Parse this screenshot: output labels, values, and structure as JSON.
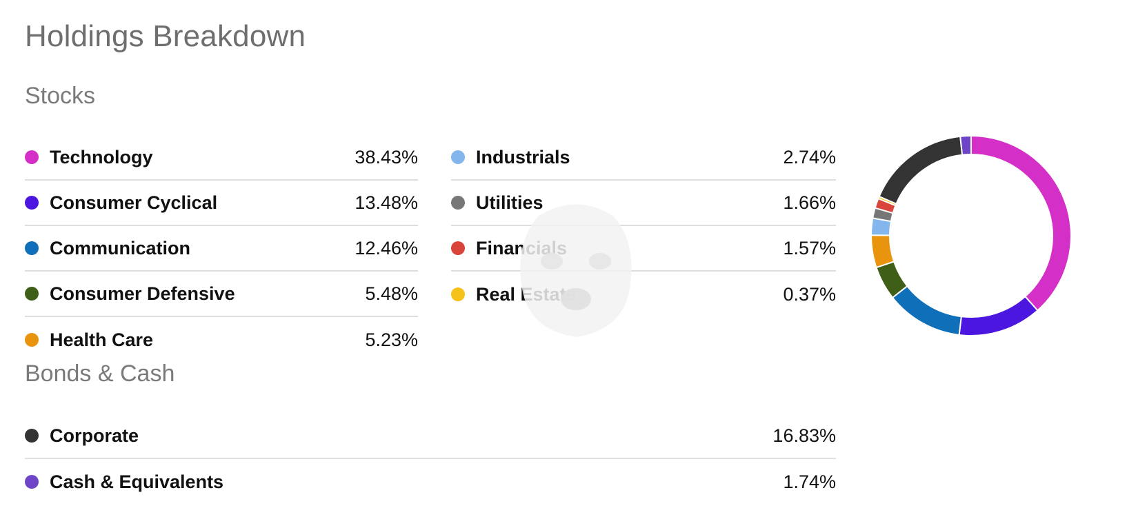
{
  "page": {
    "title": "Holdings Breakdown"
  },
  "sections": {
    "stocks": {
      "title": "Stocks"
    },
    "bonds": {
      "title": "Bonds & Cash"
    }
  },
  "stocks_left": [
    {
      "label": "Technology",
      "value": "38.43%",
      "color": "#d42fc7"
    },
    {
      "label": "Consumer Cyclical",
      "value": "13.48%",
      "color": "#4a16e0"
    },
    {
      "label": "Communication",
      "value": "12.46%",
      "color": "#0f6fb8"
    },
    {
      "label": "Consumer Defensive",
      "value": "5.48%",
      "color": "#3f5e17"
    },
    {
      "label": "Health Care",
      "value": "5.23%",
      "color": "#e8940f"
    }
  ],
  "stocks_right": [
    {
      "label": "Industrials",
      "value": "2.74%",
      "color": "#82b6ec"
    },
    {
      "label": "Utilities",
      "value": "1.66%",
      "color": "#777777"
    },
    {
      "label": "Financials",
      "value": "1.57%",
      "color": "#d9453a"
    },
    {
      "label": "Real Estate",
      "value": "0.37%",
      "color": "#f5c21b"
    }
  ],
  "bonds_cash": [
    {
      "label": "Corporate",
      "value": "16.83%",
      "color": "#333333"
    },
    {
      "label": "Cash & Equivalents",
      "value": "1.74%",
      "color": "#6f45c8"
    }
  ],
  "chart_data": {
    "type": "pie",
    "variant": "donut",
    "title": "",
    "categories": [
      "Technology",
      "Consumer Cyclical",
      "Communication",
      "Consumer Defensive",
      "Health Care",
      "Industrials",
      "Utilities",
      "Financials",
      "Real Estate",
      "Corporate",
      "Cash & Equivalents"
    ],
    "values": [
      38.43,
      13.48,
      12.46,
      5.48,
      5.23,
      2.74,
      1.66,
      1.57,
      0.37,
      16.83,
      1.74
    ],
    "colors": [
      "#d42fc7",
      "#4a16e0",
      "#0f6fb8",
      "#3f5e17",
      "#e8940f",
      "#82b6ec",
      "#777777",
      "#d9453a",
      "#f5c21b",
      "#333333",
      "#6f45c8"
    ],
    "start": "top",
    "direction": "clockwise"
  }
}
